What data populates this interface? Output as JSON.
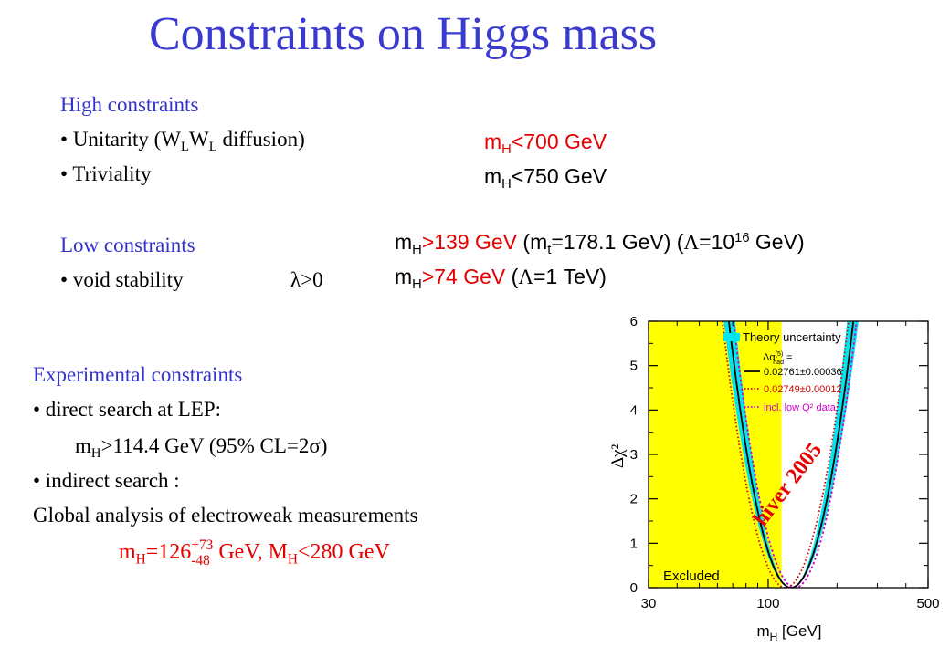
{
  "title": "Constraints on Higgs mass",
  "high": {
    "heading": "High constraints",
    "item1": {
      "bullet": "•",
      "text_a": " Unitarity (W",
      "sub1": "L",
      "text_b": "W",
      "sub2": "L",
      "text_c": "  diffusion)"
    },
    "item2": {
      "bullet": "•",
      "text": " Triviality"
    },
    "limit1": {
      "m": "m",
      "sub": "H",
      "rest": "<700 GeV"
    },
    "limit2": {
      "m": "m",
      "sub": "H",
      "rest": "<750 GeV"
    }
  },
  "low": {
    "heading": "Low constraints",
    "item1": {
      "bullet": "•",
      "text": " void stability",
      "lambda": "λ>0"
    },
    "limit1": {
      "m": "m",
      "sub": "H",
      "red": ">139 GeV",
      "p1": " (m",
      "sub_t": "t",
      "p2": "=178.1 GeV) (",
      "lam": "Λ",
      "p3": "=10",
      "sup": "16",
      "p4": " GeV)"
    },
    "limit2": {
      "m": "m",
      "sub": "H",
      "red": ">74 GeV",
      "p1": " (",
      "lam": "Λ",
      "p2": "=1 TeV)"
    }
  },
  "experimental": {
    "heading": "Experimental constraints",
    "item1": "• direct search at LEP:",
    "lep": {
      "m": "m",
      "sub": "H",
      "a": ">114.4 GeV (95% CL=2",
      "sigma": "σ",
      "b": ")"
    },
    "item2": "• indirect search :",
    "global": "Global analysis of electroweak measurements",
    "result": {
      "m": "m",
      "sub": "H",
      "a": "=126",
      "sup": "+73",
      "sub2": "-48",
      "b": " GeV, M",
      "sub3": "H",
      "c": "<280 GeV"
    }
  },
  "chart_data": {
    "type": "line",
    "xlabel": "m",
    "xlabel_sub": "H",
    "xlabel_unit": " [GeV]",
    "ylabel": "Δχ²",
    "xscale": "log",
    "xlim": [
      30,
      500
    ],
    "ylim": [
      0,
      6
    ],
    "x_ticks": [
      "30",
      "100",
      "500"
    ],
    "y_ticks": [
      "0",
      "1",
      "2",
      "3",
      "4",
      "5",
      "6"
    ],
    "excluded_region": {
      "x": [
        30,
        114.4
      ],
      "label": "Excluded",
      "color": "#ffff00"
    },
    "annotation": "hiver 2005",
    "legend": {
      "position": "top-right",
      "band": "Theory uncertainty",
      "alpha_label": "Δα",
      "alpha_sup": "(5)",
      "alpha_sub": "had",
      "alpha_eq": " =",
      "entries": [
        "0.02761±0.00036",
        "0.02749±0.00012",
        "incl. low Q² data"
      ]
    },
    "band_color": "#00e5ee",
    "series": [
      {
        "name": "0.02761±0.00036",
        "style": "solid",
        "color": "#000000",
        "min_x": 126,
        "coef": 8.1
      },
      {
        "name": "0.02749±0.00012",
        "style": "dotted",
        "color": "#cc0000",
        "min_x": 119,
        "coef": 7.9
      },
      {
        "name": "incl. low Q² data",
        "style": "dotted",
        "color": "#cc00cc",
        "min_x": 131,
        "coef": 8.3
      }
    ],
    "band": {
      "min_x": 126,
      "coef_inner": 6.9,
      "coef_outer": 10.0
    }
  }
}
